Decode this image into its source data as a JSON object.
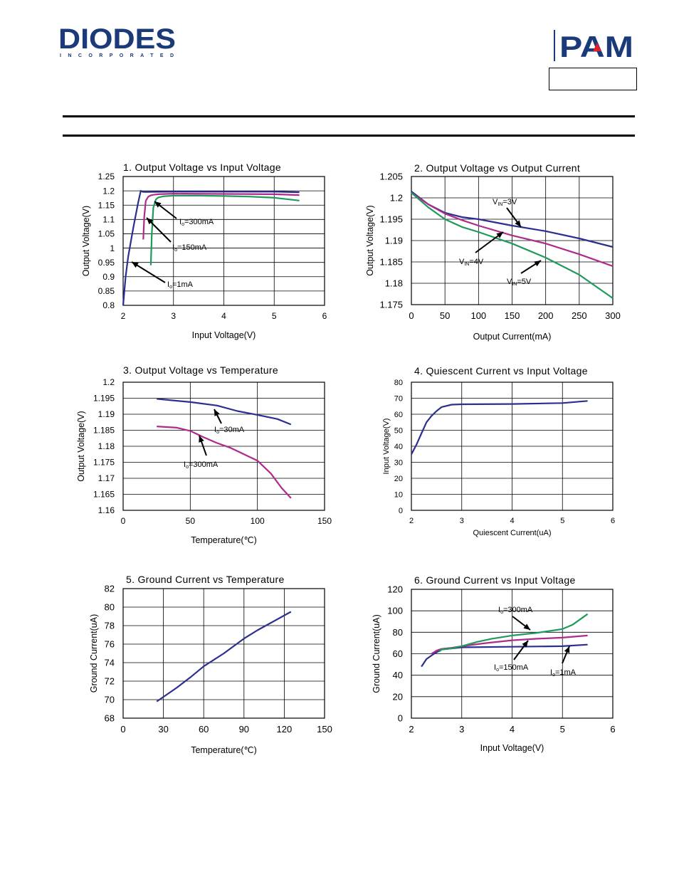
{
  "header": {
    "logo_left": "DIODES",
    "logo_left_sub": "INCORPORATED",
    "logo_right": "PAM",
    "colors": {
      "brand_blue": "#1b3a7a",
      "pam_red": "#e0212b"
    }
  },
  "chart_data": [
    {
      "type": "line",
      "title": "1. Output Voltage vs Input Voltage",
      "xlabel": "Input Voltage(V)",
      "ylabel": "Output Voltage(V)",
      "xlim": [
        2,
        6
      ],
      "ylim": [
        0.8,
        1.25
      ],
      "xticks": [
        "2",
        "3",
        "4",
        "5",
        "6"
      ],
      "yticks": [
        "0.8",
        "0.85",
        "0.9",
        "0.95",
        "1",
        "1.05",
        "1.1",
        "1.15",
        "1.2",
        "1.25"
      ],
      "grid": true,
      "series": [
        {
          "name": "Io=1mA",
          "color": "#2b2f8f",
          "x": [
            2.0,
            2.05,
            2.1,
            2.2,
            2.3,
            2.35,
            2.4,
            2.5,
            3,
            4,
            5,
            5.5
          ],
          "y": [
            0.8,
            0.9,
            0.97,
            1.07,
            1.16,
            1.2,
            1.196,
            1.196,
            1.197,
            1.197,
            1.197,
            1.195
          ]
        },
        {
          "name": "Io=150mA",
          "color": "#b02a8c",
          "x": [
            2.4,
            2.42,
            2.45,
            2.5,
            2.55,
            2.6,
            2.7,
            3,
            4,
            5,
            5.5
          ],
          "y": [
            1.03,
            1.11,
            1.165,
            1.18,
            1.184,
            1.186,
            1.188,
            1.19,
            1.189,
            1.188,
            1.185
          ]
        },
        {
          "name": "Io=300mA",
          "color": "#1f9a5a",
          "x": [
            2.55,
            2.57,
            2.6,
            2.65,
            2.7,
            2.8,
            3,
            3.5,
            4,
            4.5,
            5,
            5.5
          ],
          "y": [
            0.94,
            1.05,
            1.14,
            1.17,
            1.177,
            1.181,
            1.183,
            1.183,
            1.182,
            1.18,
            1.176,
            1.166
          ]
        }
      ],
      "annotations": [
        "Io=300mA",
        "Io=150mA",
        "Io=1mA"
      ]
    },
    {
      "type": "line",
      "title": "2. Output Voltage vs Output Current",
      "xlabel": "Output Current(mA)",
      "ylabel": "Output Voltage(V)",
      "xlim": [
        0,
        300
      ],
      "ylim": [
        1.175,
        1.205
      ],
      "xticks": [
        "0",
        "50",
        "100",
        "150",
        "200",
        "250",
        "300"
      ],
      "yticks": [
        "1.175",
        "1.18",
        "1.185",
        "1.19",
        "1.195",
        "1.2",
        "1.205"
      ],
      "grid": true,
      "series": [
        {
          "name": "VIN=3V",
          "color": "#2b2f8f",
          "x": [
            0,
            25,
            50,
            75,
            100,
            150,
            200,
            250,
            300
          ],
          "y": [
            1.2015,
            1.1985,
            1.1965,
            1.1955,
            1.195,
            1.1935,
            1.1922,
            1.1905,
            1.1885
          ]
        },
        {
          "name": "VIN=4V",
          "color": "#b02a8c",
          "x": [
            0,
            25,
            50,
            75,
            100,
            150,
            200,
            250,
            300
          ],
          "y": [
            1.2012,
            1.1985,
            1.1963,
            1.1948,
            1.1935,
            1.1912,
            1.1893,
            1.1868,
            1.184
          ]
        },
        {
          "name": "VIN=5V",
          "color": "#1f9a5a",
          "x": [
            0,
            25,
            50,
            75,
            100,
            150,
            200,
            250,
            300
          ],
          "y": [
            1.2012,
            1.1978,
            1.195,
            1.1932,
            1.192,
            1.1893,
            1.186,
            1.182,
            1.1765
          ]
        }
      ],
      "annotations": [
        "VIN=3V",
        "VIN=4V",
        "VIN=5V"
      ]
    },
    {
      "type": "line",
      "title": "3. Output Voltage vs Temperature",
      "xlabel": "Temperature(℃)",
      "ylabel": "Output Voltage(V)",
      "xlim": [
        0,
        150
      ],
      "ylim": [
        1.16,
        1.2
      ],
      "xticks": [
        "0",
        "50",
        "100",
        "150"
      ],
      "yticks": [
        "1.16",
        "1.165",
        "1.17",
        "1.175",
        "1.18",
        "1.185",
        "1.19",
        "1.195",
        "1.2"
      ],
      "grid": true,
      "series": [
        {
          "name": "Io=30mA",
          "color": "#2b2f8f",
          "x": [
            25,
            50,
            70,
            85,
            100,
            115,
            125
          ],
          "y": [
            1.1948,
            1.1938,
            1.1927,
            1.191,
            1.1898,
            1.1885,
            1.1868
          ]
        },
        {
          "name": "Io=300mA",
          "color": "#b02a8c",
          "x": [
            25,
            40,
            50,
            60,
            70,
            80,
            90,
            100,
            110,
            118,
            125
          ],
          "y": [
            1.1862,
            1.1858,
            1.1848,
            1.1828,
            1.181,
            1.1795,
            1.1775,
            1.1755,
            1.1715,
            1.167,
            1.1638
          ]
        }
      ],
      "annotations": [
        "Io=30mA",
        "Io=300mA"
      ]
    },
    {
      "type": "line",
      "title": "4. Quiescent Current vs Input Voltage",
      "xlabel": "Quiescent Current(uA)",
      "ylabel": "Input Voltage(V)",
      "xlim": [
        2,
        6
      ],
      "ylim": [
        0,
        80
      ],
      "xticks": [
        "2",
        "3",
        "4",
        "5",
        "6"
      ],
      "yticks": [
        "0",
        "10",
        "20",
        "30",
        "40",
        "50",
        "60",
        "70",
        "80"
      ],
      "grid": true,
      "series": [
        {
          "name": "",
          "color": "#2b2f8f",
          "x": [
            2.0,
            2.1,
            2.2,
            2.3,
            2.4,
            2.5,
            2.6,
            2.8,
            3,
            4,
            5,
            5.5
          ],
          "y": [
            35,
            41,
            48,
            55,
            59,
            62,
            64.5,
            66,
            66.2,
            66.4,
            67,
            68.3
          ]
        }
      ]
    },
    {
      "type": "line",
      "title": "5. Ground Current vs Temperature",
      "xlabel": "Temperature(℃)",
      "ylabel": "Ground Current(uA)",
      "xlim": [
        0,
        150
      ],
      "ylim": [
        68,
        82
      ],
      "xticks": [
        "0",
        "30",
        "60",
        "90",
        "120",
        "150"
      ],
      "yticks": [
        "68",
        "70",
        "72",
        "74",
        "76",
        "78",
        "80",
        "82"
      ],
      "grid": true,
      "series": [
        {
          "name": "",
          "color": "#2b2f8f",
          "x": [
            25,
            40,
            50,
            60,
            75,
            90,
            100,
            110,
            125
          ],
          "y": [
            69.8,
            71.3,
            72.4,
            73.6,
            75,
            76.6,
            77.5,
            78.3,
            79.5
          ]
        }
      ]
    },
    {
      "type": "line",
      "title": "6. Ground Current vs Input Voltage",
      "xlabel": "Input Voltage(V)",
      "ylabel": "Ground Current(uA)",
      "xlim": [
        2,
        6
      ],
      "ylim": [
        0,
        120
      ],
      "xticks": [
        "2",
        "3",
        "4",
        "5",
        "6"
      ],
      "yticks": [
        "0",
        "20",
        "40",
        "60",
        "80",
        "100",
        "120"
      ],
      "grid": true,
      "series": [
        {
          "name": "Io=1mA",
          "color": "#2b2f8f",
          "x": [
            2.2,
            2.3,
            2.45,
            2.6,
            3,
            4,
            5,
            5.5
          ],
          "y": [
            48,
            55,
            60,
            64,
            66,
            66.5,
            67,
            68.5
          ]
        },
        {
          "name": "Io=150mA",
          "color": "#b02a8c",
          "x": [
            2.4,
            2.5,
            2.6,
            2.8,
            3,
            3.5,
            4,
            4.5,
            5,
            5.5
          ],
          "y": [
            60,
            63,
            64.5,
            65.5,
            67,
            70,
            72.5,
            74,
            75,
            77
          ]
        },
        {
          "name": "Io=300mA",
          "color": "#1f9a5a",
          "x": [
            2.55,
            2.6,
            2.8,
            3,
            3.3,
            3.6,
            4,
            4.5,
            5,
            5.2,
            5.5
          ],
          "y": [
            62,
            64,
            65,
            67,
            71,
            74,
            77,
            79.5,
            83,
            87,
            97
          ]
        }
      ],
      "annotations": [
        "Io=300mA",
        "Io=150mA",
        "Io=1mA"
      ]
    }
  ]
}
